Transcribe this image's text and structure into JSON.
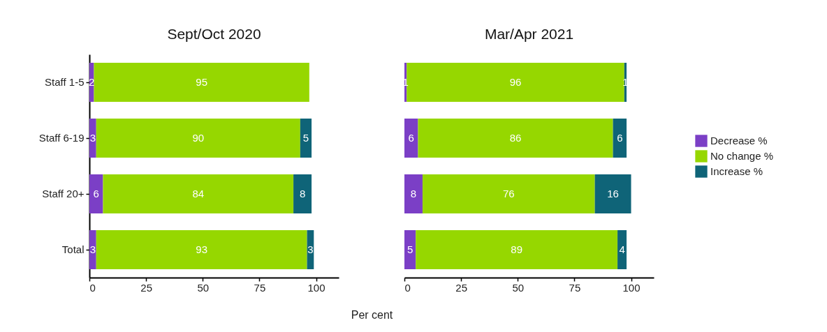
{
  "chart_data": [
    {
      "type": "bar",
      "orientation": "horizontal",
      "stacked": true,
      "title": "Sept/Oct 2020",
      "xlabel": "Per cent",
      "categories": [
        "Staff 1-5",
        "Staff 6-19",
        "Staff 20+",
        "Total"
      ],
      "series": [
        {
          "name": "Decrease %",
          "color": "#7b3fc6",
          "values": [
            2,
            3,
            6,
            3
          ]
        },
        {
          "name": "No change %",
          "color": "#96d700",
          "values": [
            95,
            90,
            84,
            93
          ]
        },
        {
          "name": "Increase %",
          "color": "#0f6478",
          "values": [
            null,
            5,
            8,
            3
          ]
        }
      ],
      "xlim": [
        0,
        110
      ],
      "xticks": [
        0,
        25,
        50,
        75,
        100
      ],
      "data_labels": true,
      "grid": false,
      "legend": "right"
    },
    {
      "type": "bar",
      "orientation": "horizontal",
      "stacked": true,
      "title": "Mar/Apr 2021",
      "categories": [
        "Staff 1-5",
        "Staff 6-19",
        "Staff 20+",
        "Total"
      ],
      "series": [
        {
          "name": "Decrease %",
          "color": "#7b3fc6",
          "values": [
            1,
            6,
            8,
            5
          ]
        },
        {
          "name": "No change %",
          "color": "#96d700",
          "values": [
            96,
            86,
            76,
            89
          ]
        },
        {
          "name": "Increase %",
          "color": "#0f6478",
          "values": [
            1,
            6,
            16,
            4
          ]
        }
      ],
      "xlim": [
        0,
        110
      ],
      "xticks": [
        0,
        25,
        50,
        75,
        100
      ],
      "data_labels": true,
      "grid": false,
      "legend": "right",
      "tick_labels": "x"
    }
  ]
}
